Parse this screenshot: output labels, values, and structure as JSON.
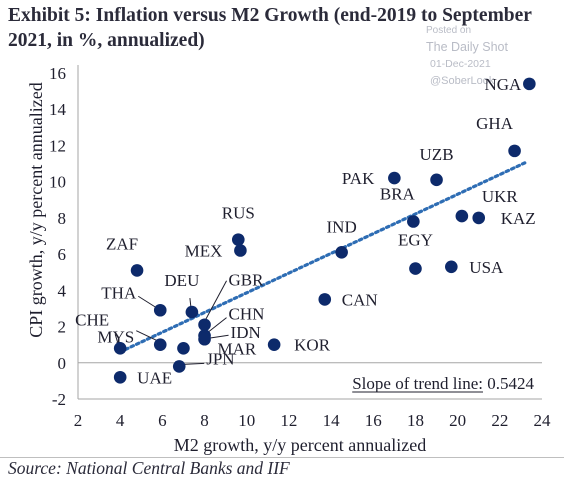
{
  "header": {
    "title": "Exhibit 5:  Inflation versus M2 Growth (end-2019 to September 2021, in %, annualized)"
  },
  "watermark": {
    "posted_on": "Posted on",
    "brand": "The Daily Shot",
    "date": "01-Dec-2021",
    "handle": "@SoberLook"
  },
  "source": "Source: National Central Banks and IIF",
  "colors": {
    "point": "#0d2a6b",
    "trend": "#2e6db4",
    "text": "#1f1f2e",
    "axis": "#a6a6a6"
  },
  "chart_data": {
    "type": "scatter",
    "xlabel": "M2 growth, y/y percent annualized",
    "ylabel": "CPI growth, y/y percent annualized",
    "xlim": [
      2,
      24
    ],
    "ylim": [
      -2,
      16
    ],
    "xticks": [
      2,
      4,
      6,
      8,
      10,
      12,
      14,
      16,
      18,
      20,
      22,
      24
    ],
    "yticks": [
      -2,
      0,
      2,
      4,
      6,
      8,
      10,
      12,
      14,
      16
    ],
    "grid": false,
    "annotation": "Slope of trend line: 0.5424",
    "trend_line": {
      "slope": 0.5424,
      "x_range": [
        4,
        23.3
      ],
      "y_range": [
        0.6,
        11.1
      ]
    },
    "points": [
      {
        "label": "NGA",
        "x": 23.4,
        "y": 15.4
      },
      {
        "label": "GHA",
        "x": 22.7,
        "y": 11.7
      },
      {
        "label": "UZB",
        "x": 19.0,
        "y": 10.1
      },
      {
        "label": "PAK",
        "x": 17.0,
        "y": 10.2
      },
      {
        "label": "BRA",
        "x": 17.9,
        "y": 7.8
      },
      {
        "label": "UKR",
        "x": 20.2,
        "y": 8.1
      },
      {
        "label": "KAZ",
        "x": 21.0,
        "y": 8.0
      },
      {
        "label": "IND",
        "x": 14.5,
        "y": 6.1
      },
      {
        "label": "EGY",
        "x": 18.0,
        "y": 5.2
      },
      {
        "label": "USA",
        "x": 19.7,
        "y": 5.3
      },
      {
        "label": "CAN",
        "x": 13.7,
        "y": 3.5
      },
      {
        "label": "RUS",
        "x": 9.6,
        "y": 6.8
      },
      {
        "label": "MEX",
        "x": 9.7,
        "y": 6.2
      },
      {
        "label": "ZAF",
        "x": 4.8,
        "y": 5.1
      },
      {
        "label": "KOR",
        "x": 11.3,
        "y": 1.0
      },
      {
        "label": "THA",
        "x": 5.9,
        "y": 2.9
      },
      {
        "label": "MYS",
        "x": 5.9,
        "y": 1.0
      },
      {
        "label": "CHE",
        "x": 4.0,
        "y": 0.8
      },
      {
        "label": "DEU",
        "x": 7.4,
        "y": 2.8
      },
      {
        "label": "GBR",
        "x": 8.0,
        "y": 2.1
      },
      {
        "label": "CHN",
        "x": 8.0,
        "y": 1.5
      },
      {
        "label": "IDN",
        "x": 8.0,
        "y": 1.3
      },
      {
        "label": "MAR",
        "x": 7.0,
        "y": 0.8
      },
      {
        "label": "UAE",
        "x": 4.0,
        "y": -0.8
      },
      {
        "label": "JPN",
        "x": 6.8,
        "y": -0.2
      }
    ]
  }
}
